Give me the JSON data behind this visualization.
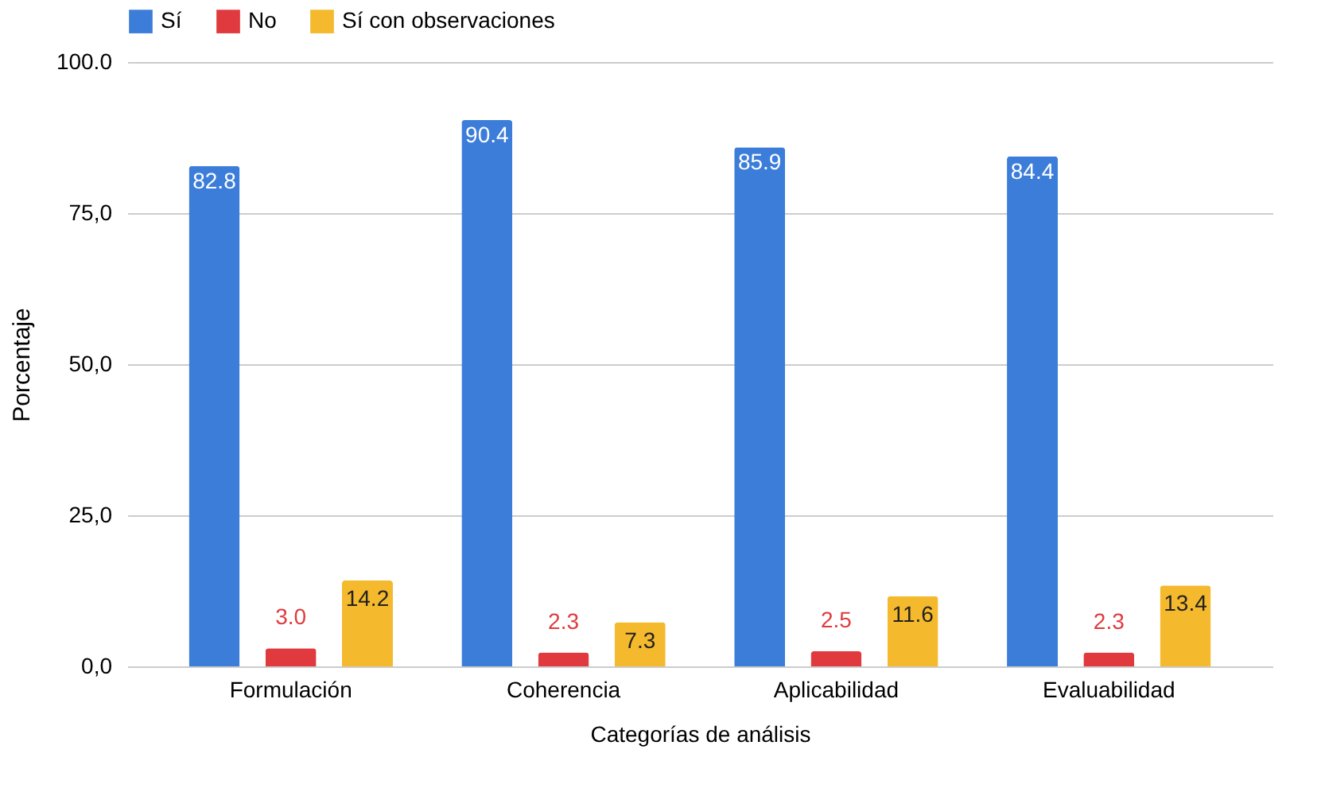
{
  "chart_data": {
    "type": "bar",
    "xlabel": "Categorías de análisis",
    "ylabel": "Porcentaje",
    "categories": [
      "Formulación",
      "Coherencia",
      "Aplicabilidad",
      "Evaluabilidad"
    ],
    "series": [
      {
        "name": "Sí",
        "color": "#3c7dd9",
        "values": [
          82.8,
          90.4,
          85.9,
          84.4
        ],
        "value_labels": [
          "82.8",
          "90.4",
          "85.9",
          "84.4"
        ]
      },
      {
        "name": "No",
        "color": "#e03a3e",
        "values": [
          3.0,
          2.3,
          2.5,
          2.3
        ],
        "value_labels": [
          "3.0",
          "2.3",
          "2.5",
          "2.3"
        ]
      },
      {
        "name": "Sí con observaciones",
        "color": "#f4b92c",
        "values": [
          14.2,
          7.3,
          11.6,
          13.4
        ],
        "value_labels": [
          "14.2",
          "7.3",
          "11.6",
          "13.4"
        ]
      }
    ],
    "ylim": [
      0,
      100
    ],
    "yticks": [
      {
        "value": 0,
        "label": "0,0"
      },
      {
        "value": 25,
        "label": "25,0"
      },
      {
        "value": 50,
        "label": "50,0"
      },
      {
        "value": 75,
        "label": "75,0"
      },
      {
        "value": 100,
        "label": "100.0"
      }
    ],
    "grid": "y",
    "legend": "top"
  }
}
